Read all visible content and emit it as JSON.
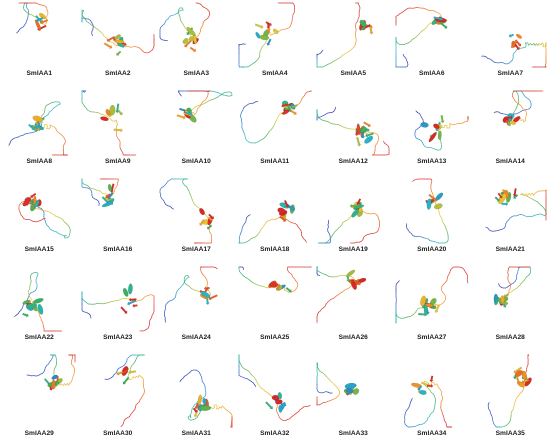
{
  "figure": {
    "panels": [
      {
        "label": "SmIAA1",
        "color_scheme": "rainbow"
      },
      {
        "label": "SmIAA2",
        "color_scheme": "rainbow"
      },
      {
        "label": "SmIAA3",
        "color_scheme": "rainbow"
      },
      {
        "label": "SmIAA4",
        "color_scheme": "rainbow"
      },
      {
        "label": "SmIAA5",
        "color_scheme": "rainbow"
      },
      {
        "label": "SmIAA6",
        "color_scheme": "rainbow"
      },
      {
        "label": "SmIAA7",
        "color_scheme": "rainbow"
      },
      {
        "label": "SmIAA8",
        "color_scheme": "rainbow"
      },
      {
        "label": "SmIAA9",
        "color_scheme": "rainbow"
      },
      {
        "label": "SmIAA10",
        "color_scheme": "rainbow"
      },
      {
        "label": "SmIAA11",
        "color_scheme": "rainbow"
      },
      {
        "label": "SmIAA12",
        "color_scheme": "rainbow"
      },
      {
        "label": "SmIAA13",
        "color_scheme": "rainbow"
      },
      {
        "label": "SmIAA14",
        "color_scheme": "rainbow"
      },
      {
        "label": "SmIAA15",
        "color_scheme": "rainbow"
      },
      {
        "label": "SmIAA16",
        "color_scheme": "rainbow"
      },
      {
        "label": "SmIAA17",
        "color_scheme": "rainbow"
      },
      {
        "label": "SmIAA18",
        "color_scheme": "rainbow"
      },
      {
        "label": "SmIAA19",
        "color_scheme": "rainbow"
      },
      {
        "label": "SmIAA20",
        "color_scheme": "rainbow"
      },
      {
        "label": "SmIAA21",
        "color_scheme": "rainbow"
      },
      {
        "label": "SmIAA22",
        "color_scheme": "rainbow"
      },
      {
        "label": "SmIAA23",
        "color_scheme": "rainbow"
      },
      {
        "label": "SmIAA24",
        "color_scheme": "rainbow"
      },
      {
        "label": "SmIAA25",
        "color_scheme": "rainbow"
      },
      {
        "label": "SmIAA26",
        "color_scheme": "rainbow"
      },
      {
        "label": "SmIAA27",
        "color_scheme": "rainbow"
      },
      {
        "label": "SmIAA28",
        "color_scheme": "rainbow"
      },
      {
        "label": "SmIAA29",
        "color_scheme": "rainbow"
      },
      {
        "label": "SmIAA30",
        "color_scheme": "rainbow"
      },
      {
        "label": "SmIAA31",
        "color_scheme": "rainbow"
      },
      {
        "label": "SmIAA32",
        "color_scheme": "rainbow"
      },
      {
        "label": "SmIAA33",
        "color_scheme": "rainbow"
      },
      {
        "label": "SmIAA34",
        "color_scheme": "rainbow"
      },
      {
        "label": "SmIAA35",
        "color_scheme": "rainbow"
      }
    ],
    "palette": {
      "n_terminus": "#1f2aa8",
      "helix_blue": "#2f63c9",
      "cyan": "#26b4c8",
      "green": "#3fae55",
      "yellow": "#e8c630",
      "orange": "#f08a24",
      "red": "#d8262a",
      "c_terminus": "#d2311c"
    },
    "background": "#ffffff"
  }
}
